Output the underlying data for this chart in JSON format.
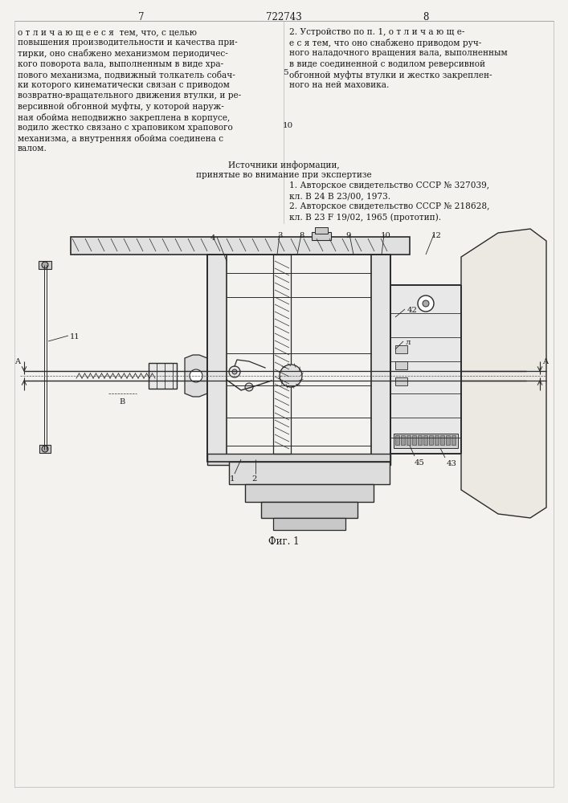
{
  "page_num_left": "7",
  "page_num_right": "8",
  "patent_number": "722743",
  "bg_color": "#f4f2ee",
  "text_color": "#1a1a1a",
  "draw_color": "#2a2a2a",
  "left_column_lines": [
    "о т л и ч а ю щ е е с я  тем, что, с целью",
    "повышения производительности и качества при-",
    "тирки, оно снабжено механизмом периодичес-",
    "кого поворота вала, выполненным в виде хра-",
    "пового механизма, подвижный толкатель собач-",
    "ки которого кинематически связан с приводом",
    "возвратно-вращательного движения втулки, и ре-",
    "версивной обгонной муфты, у которой наруж-",
    "ная обойма неподвижно закреплена в корпусе,",
    "водило жестко связано с храповиком храпового",
    "механизма, а внутренняя обойма соединена с",
    "валом."
  ],
  "right_column_lines": [
    "2. Устройство по п. 1, о т л и ч а ю щ е-",
    "е с я тем, что оно снабжено приводом руч-",
    "ного наладочного вращения вала, выполненным",
    "в виде соединенной с водилом реверсивной",
    "обгонной муфты втулки и жестко закреплен-",
    "ного на ней маховика."
  ],
  "src_header": "Источники информации,",
  "src_sub": "принятые во внимание при экспертизе",
  "src1a": "1. Авторское свидетельство СССР № 327039,",
  "src1b": "кл. В 24 В 23/00, 1973.",
  "src2a": "2. Авторское свидетельство СССР № 218628,",
  "src2b": "кл. В 23 F 19/02, 1965 (прототип).",
  "fig_caption": "Фиг. 1",
  "lnum5": "5",
  "lnum10": "10"
}
